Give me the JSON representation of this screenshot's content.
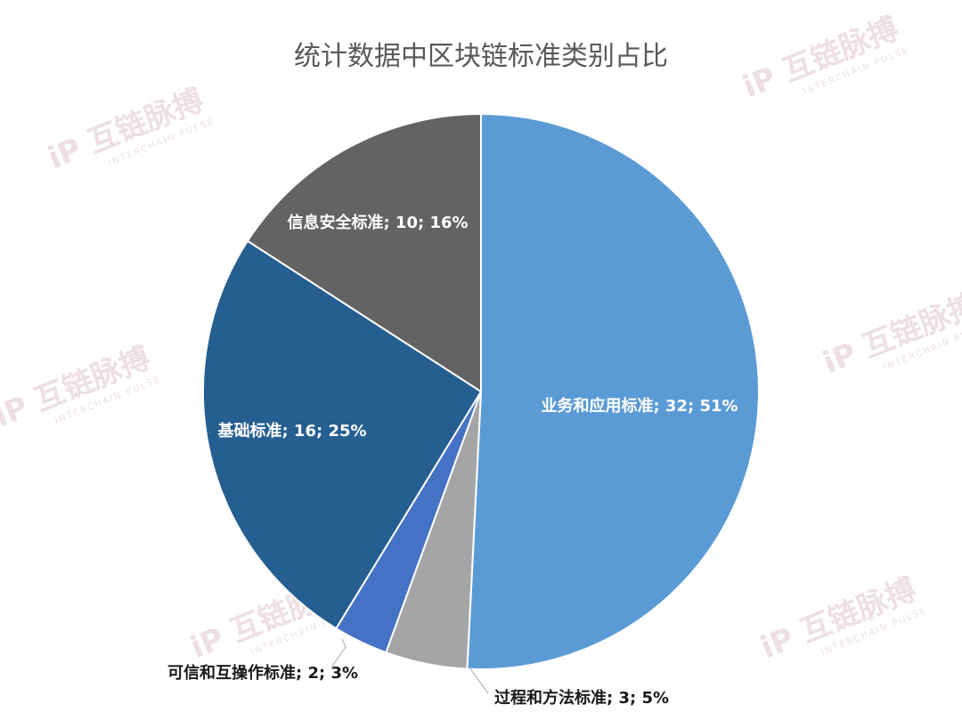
{
  "chart_data": {
    "type": "pie",
    "title": "统计数据中区块链标准类别占比",
    "slices": [
      {
        "name": "业务和应用标准",
        "value": 32,
        "percent": "51%",
        "label": "业务和应用标准; 32; 51%",
        "color": "#5B9BD5"
      },
      {
        "name": "过程和方法标准",
        "value": 3,
        "percent": "5%",
        "label": "过程和方法标准; 3; 5%",
        "color": "#A5A5A5"
      },
      {
        "name": "可信和互操作标准",
        "value": 2,
        "percent": "3%",
        "label": "可信和互操作标准; 2; 3%",
        "color": "#4472C4"
      },
      {
        "name": "基础标准",
        "value": 16,
        "percent": "25%",
        "label": "基础标准; 16; 25%",
        "color": "#255E91"
      },
      {
        "name": "信息安全标准",
        "value": 10,
        "percent": "16%",
        "label": "信息安全标准; 10; 16%",
        "color": "#636363"
      }
    ],
    "start_angle": "12 o'clock",
    "direction": "clockwise",
    "legend": "none"
  },
  "watermark": {
    "logo_text": "互链脉搏",
    "sub_text": "INTERCHAIN PULSE",
    "color": "#E8D5DA"
  }
}
